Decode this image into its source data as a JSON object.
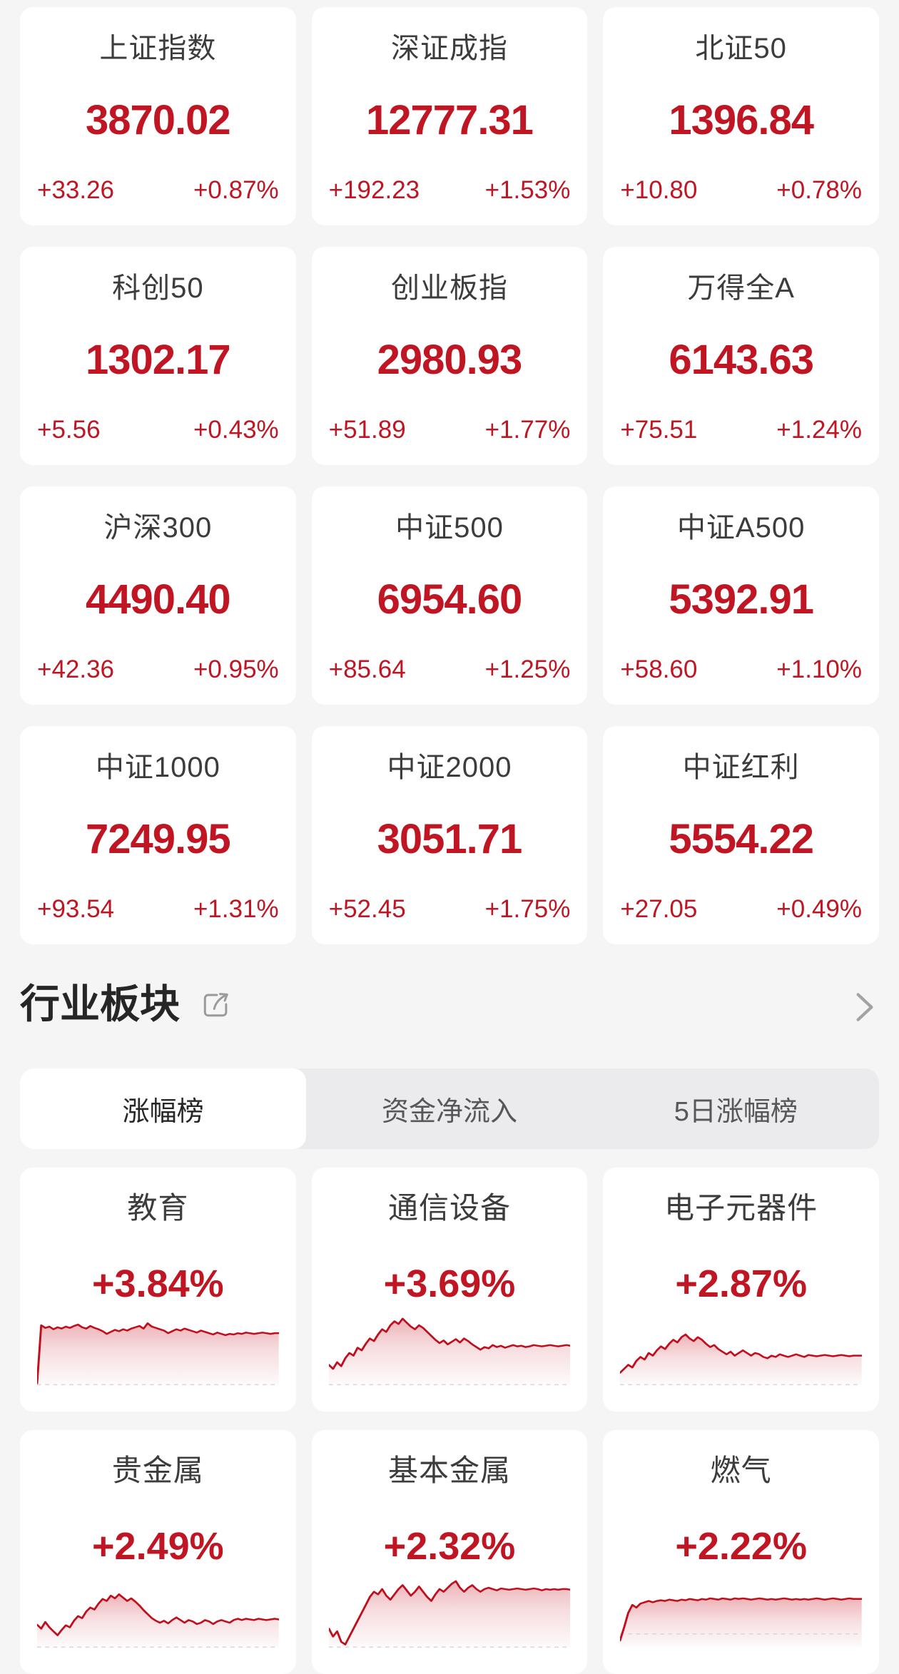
{
  "colors": {
    "up_red": "#c01522",
    "line_red": "#c10e1d",
    "fill_red": "197,20,34",
    "title_gray": "#3c3c3c",
    "page_bg": "#f5f5f6",
    "dash_gray": "#d9d9d9"
  },
  "index_cards": [
    {
      "name": "上证指数",
      "value": "3870.02",
      "change": "+33.26",
      "change_pct": "+0.87%"
    },
    {
      "name": "深证成指",
      "value": "12777.31",
      "change": "+192.23",
      "change_pct": "+1.53%"
    },
    {
      "name": "北证50",
      "value": "1396.84",
      "change": "+10.80",
      "change_pct": "+0.78%"
    },
    {
      "name": "科创50",
      "value": "1302.17",
      "change": "+5.56",
      "change_pct": "+0.43%"
    },
    {
      "name": "创业板指",
      "value": "2980.93",
      "change": "+51.89",
      "change_pct": "+1.77%"
    },
    {
      "name": "万得全A",
      "value": "6143.63",
      "change": "+75.51",
      "change_pct": "+1.24%"
    },
    {
      "name": "沪深300",
      "value": "4490.40",
      "change": "+42.36",
      "change_pct": "+0.95%"
    },
    {
      "name": "中证500",
      "value": "6954.60",
      "change": "+85.64",
      "change_pct": "+1.25%"
    },
    {
      "name": "中证A500",
      "value": "5392.91",
      "change": "+58.60",
      "change_pct": "+1.10%"
    },
    {
      "name": "中证1000",
      "value": "7249.95",
      "change": "+93.54",
      "change_pct": "+1.31%"
    },
    {
      "name": "中证2000",
      "value": "3051.71",
      "change": "+52.45",
      "change_pct": "+1.75%"
    },
    {
      "name": "中证红利",
      "value": "5554.22",
      "change": "+27.05",
      "change_pct": "+0.49%"
    }
  ],
  "sector_section": {
    "title": "行业板块",
    "share_icon": "share-icon",
    "chevron_icon": "chevron-right-icon",
    "tabs": [
      {
        "label": "涨幅榜",
        "active": true
      },
      {
        "label": "资金净流入",
        "active": false
      },
      {
        "label": "5日涨幅榜",
        "active": false
      }
    ]
  },
  "sector_cards": [
    {
      "name": "教育",
      "change_pct": "+3.84%",
      "baseline_pct": 0
    },
    {
      "name": "通信设备",
      "change_pct": "+3.69%",
      "baseline_pct": 0
    },
    {
      "name": "电子元器件",
      "change_pct": "+2.87%",
      "baseline_pct": 0
    },
    {
      "name": "贵金属",
      "change_pct": "+2.49%",
      "baseline_pct": 0
    },
    {
      "name": "基本金属",
      "change_pct": "+2.32%",
      "baseline_pct": 0
    },
    {
      "name": "燃气",
      "change_pct": "+2.22%",
      "baseline_pct": 20
    }
  ],
  "chart_data": [
    {
      "type": "area",
      "name": "教育",
      "ylim": [
        0,
        100
      ],
      "grid": false,
      "values": [
        2,
        90,
        86,
        88,
        84,
        87,
        85,
        88,
        86,
        89,
        91,
        87,
        85,
        89,
        86,
        84,
        81,
        77,
        80,
        83,
        81,
        84,
        82,
        85,
        87,
        89,
        85,
        93,
        88,
        86,
        84,
        82,
        78,
        81,
        84,
        82,
        85,
        83,
        81,
        79,
        82,
        80,
        78,
        76,
        79,
        77,
        75,
        77,
        76,
        78,
        77,
        79,
        78,
        77,
        78,
        79,
        78,
        77,
        78,
        78
      ]
    },
    {
      "type": "area",
      "name": "通信设备",
      "ylim": [
        0,
        100
      ],
      "grid": false,
      "values": [
        30,
        24,
        34,
        28,
        40,
        48,
        44,
        56,
        52,
        62,
        70,
        66,
        76,
        84,
        80,
        90,
        96,
        92,
        100,
        94,
        88,
        84,
        90,
        86,
        80,
        74,
        68,
        63,
        67,
        61,
        65,
        69,
        64,
        70,
        66,
        61,
        57,
        53,
        57,
        55,
        60,
        57,
        59,
        56,
        58,
        60,
        58,
        59,
        57,
        58,
        60,
        59,
        58,
        59,
        60,
        59,
        58,
        59,
        60,
        59
      ]
    },
    {
      "type": "area",
      "name": "电子元器件",
      "ylim": [
        0,
        100
      ],
      "grid": false,
      "values": [
        18,
        24,
        30,
        26,
        36,
        42,
        38,
        48,
        44,
        52,
        58,
        54,
        62,
        68,
        64,
        72,
        76,
        70,
        66,
        72,
        68,
        62,
        57,
        60,
        54,
        50,
        46,
        50,
        44,
        48,
        52,
        48,
        44,
        48,
        46,
        42,
        40,
        44,
        42,
        46,
        44,
        42,
        44,
        46,
        44,
        42,
        45,
        44,
        43,
        44,
        45,
        44,
        43,
        44,
        45,
        44,
        43,
        44,
        44,
        44
      ]
    },
    {
      "type": "area",
      "name": "贵金属",
      "ylim": [
        0,
        100
      ],
      "grid": false,
      "values": [
        34,
        28,
        38,
        30,
        24,
        18,
        26,
        33,
        30,
        40,
        47,
        44,
        54,
        60,
        57,
        66,
        73,
        70,
        78,
        74,
        80,
        75,
        70,
        74,
        69,
        63,
        56,
        50,
        44,
        40,
        37,
        40,
        36,
        41,
        45,
        41,
        37,
        41,
        39,
        35,
        37,
        41,
        39,
        35,
        39,
        41,
        39,
        37,
        41,
        43,
        41,
        43,
        42,
        41,
        43,
        42,
        41,
        42,
        43,
        42
      ]
    },
    {
      "type": "area",
      "name": "基本金属",
      "ylim": [
        0,
        100
      ],
      "grid": false,
      "values": [
        28,
        16,
        24,
        8,
        4,
        16,
        28,
        40,
        52,
        64,
        76,
        84,
        80,
        88,
        78,
        72,
        80,
        88,
        94,
        86,
        78,
        84,
        92,
        84,
        76,
        70,
        80,
        88,
        84,
        90,
        96,
        100,
        90,
        84,
        90,
        94,
        88,
        84,
        88,
        90,
        88,
        86,
        89,
        88,
        87,
        88,
        89,
        88,
        87,
        88,
        89,
        88,
        86,
        88,
        87,
        88,
        87,
        88,
        88,
        87
      ]
    },
    {
      "type": "area",
      "name": "燃气",
      "ylim": [
        0,
        100
      ],
      "grid": false,
      "values": [
        10,
        30,
        52,
        64,
        60,
        66,
        68,
        70,
        68,
        70,
        71,
        70,
        72,
        71,
        70,
        72,
        71,
        73,
        72,
        71,
        73,
        72,
        74,
        73,
        72,
        74,
        73,
        72,
        74,
        73,
        74,
        73,
        72,
        73,
        74,
        73,
        72,
        73,
        72,
        73,
        74,
        73,
        72,
        73,
        72,
        73,
        72,
        73,
        74,
        73,
        72,
        73,
        74,
        73,
        72,
        73,
        74,
        73,
        73,
        73
      ]
    }
  ]
}
